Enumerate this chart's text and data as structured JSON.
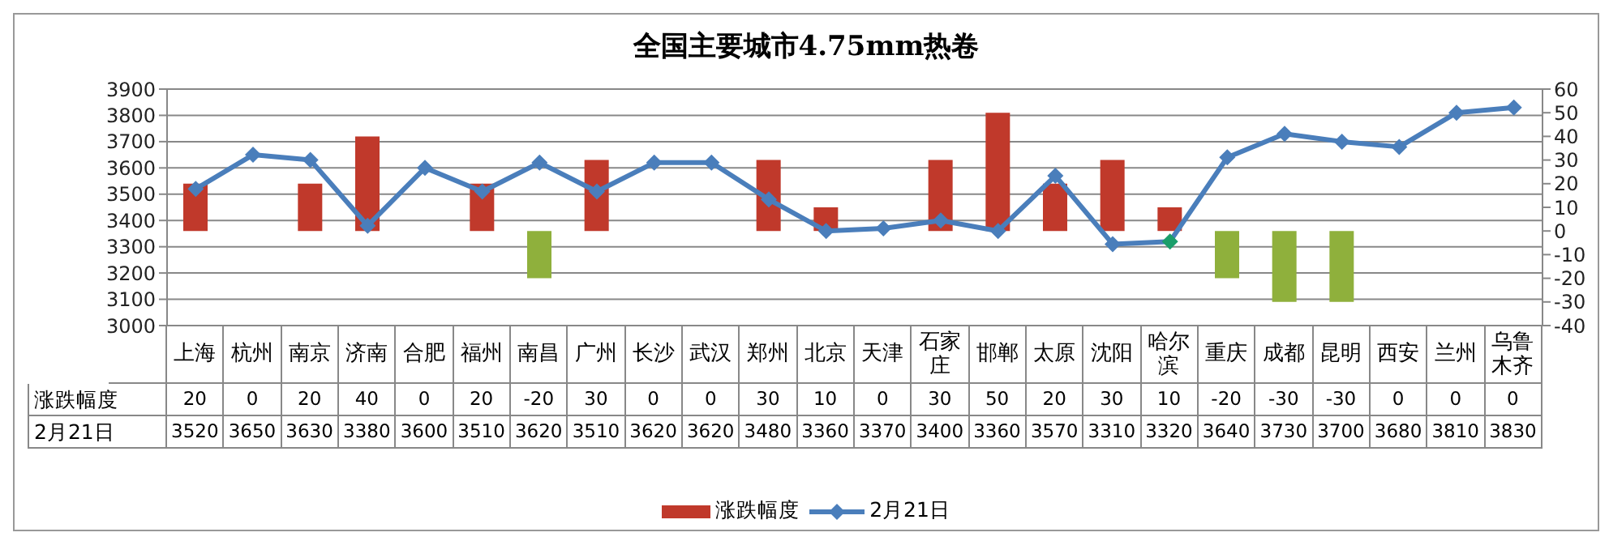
{
  "chart_data": {
    "type": "bar",
    "title": "全国主要城市4.75mm热卷",
    "categories": [
      "上海",
      "杭州",
      "南京",
      "济南",
      "合肥",
      "福州",
      "南昌",
      "广州",
      "长沙",
      "武汉",
      "郑州",
      "北京",
      "天津",
      "石家庄",
      "邯郸",
      "太原",
      "沈阳",
      "哈尔滨",
      "重庆",
      "成都",
      "昆明",
      "西安",
      "兰州",
      "乌鲁木齐"
    ],
    "series": [
      {
        "name": "涨跌幅度",
        "axis": "y2",
        "color": "#c0392b",
        "values": [
          20,
          0,
          20,
          40,
          0,
          20,
          -20,
          30,
          0,
          0,
          30,
          10,
          0,
          30,
          50,
          20,
          30,
          10,
          -20,
          -30,
          -30,
          0,
          0,
          0
        ],
        "colors": [
          "#c0392b",
          "#c0392b",
          "#c0392b",
          "#c0392b",
          "#c0392b",
          "#c0392b",
          "#8fb03c",
          "#c0392b",
          "#c0392b",
          "#c0392b",
          "#c0392b",
          "#c0392b",
          "#c0392b",
          "#c0392b",
          "#c0392b",
          "#c0392b",
          "#c0392b",
          "#c0392b",
          "#8fb03c",
          "#8fb03c",
          "#8fb03c",
          "#c0392b",
          "#c0392b",
          "#c0392b"
        ]
      },
      {
        "name": "2月21日",
        "type": "line",
        "color": "#4a7ebb",
        "values": [
          3520,
          3650,
          3630,
          3380,
          3600,
          3510,
          3620,
          3510,
          3620,
          3620,
          3480,
          3360,
          3370,
          3400,
          3360,
          3570,
          3310,
          3320,
          3640,
          3730,
          3700,
          3680,
          3810,
          3830
        ],
        "colors": [
          "#4a7ebb",
          "#4a7ebb",
          "#4a7ebb",
          "#4a7ebb",
          "#4a7ebb",
          "#4a7ebb",
          "#4a7ebb",
          "#4a7ebb",
          "#4a7ebb",
          "#4a7ebb",
          "#4a7ebb",
          "#4a7ebb",
          "#4a7ebb",
          "#4a7ebb",
          "#4a7ebb",
          "#4a7ebb",
          "#4a7ebb",
          "#1a9e6a",
          "#4a7ebb",
          "#4a7ebb",
          "#4a7ebb",
          "#4a7ebb",
          "#4a7ebb",
          "#4a7ebb"
        ]
      }
    ],
    "ylim": [
      3000,
      3900
    ],
    "yticks": [
      3000,
      3100,
      3200,
      3300,
      3400,
      3500,
      3600,
      3700,
      3800,
      3900
    ],
    "y2lim": [
      -40,
      60
    ],
    "y2ticks": [
      -40,
      -30,
      -20,
      -10,
      0,
      10,
      20,
      30,
      40,
      50,
      60
    ],
    "grid": "y",
    "legend": "bottom",
    "marker": "diamond",
    "line_style": "solid",
    "data_labels": true
  }
}
